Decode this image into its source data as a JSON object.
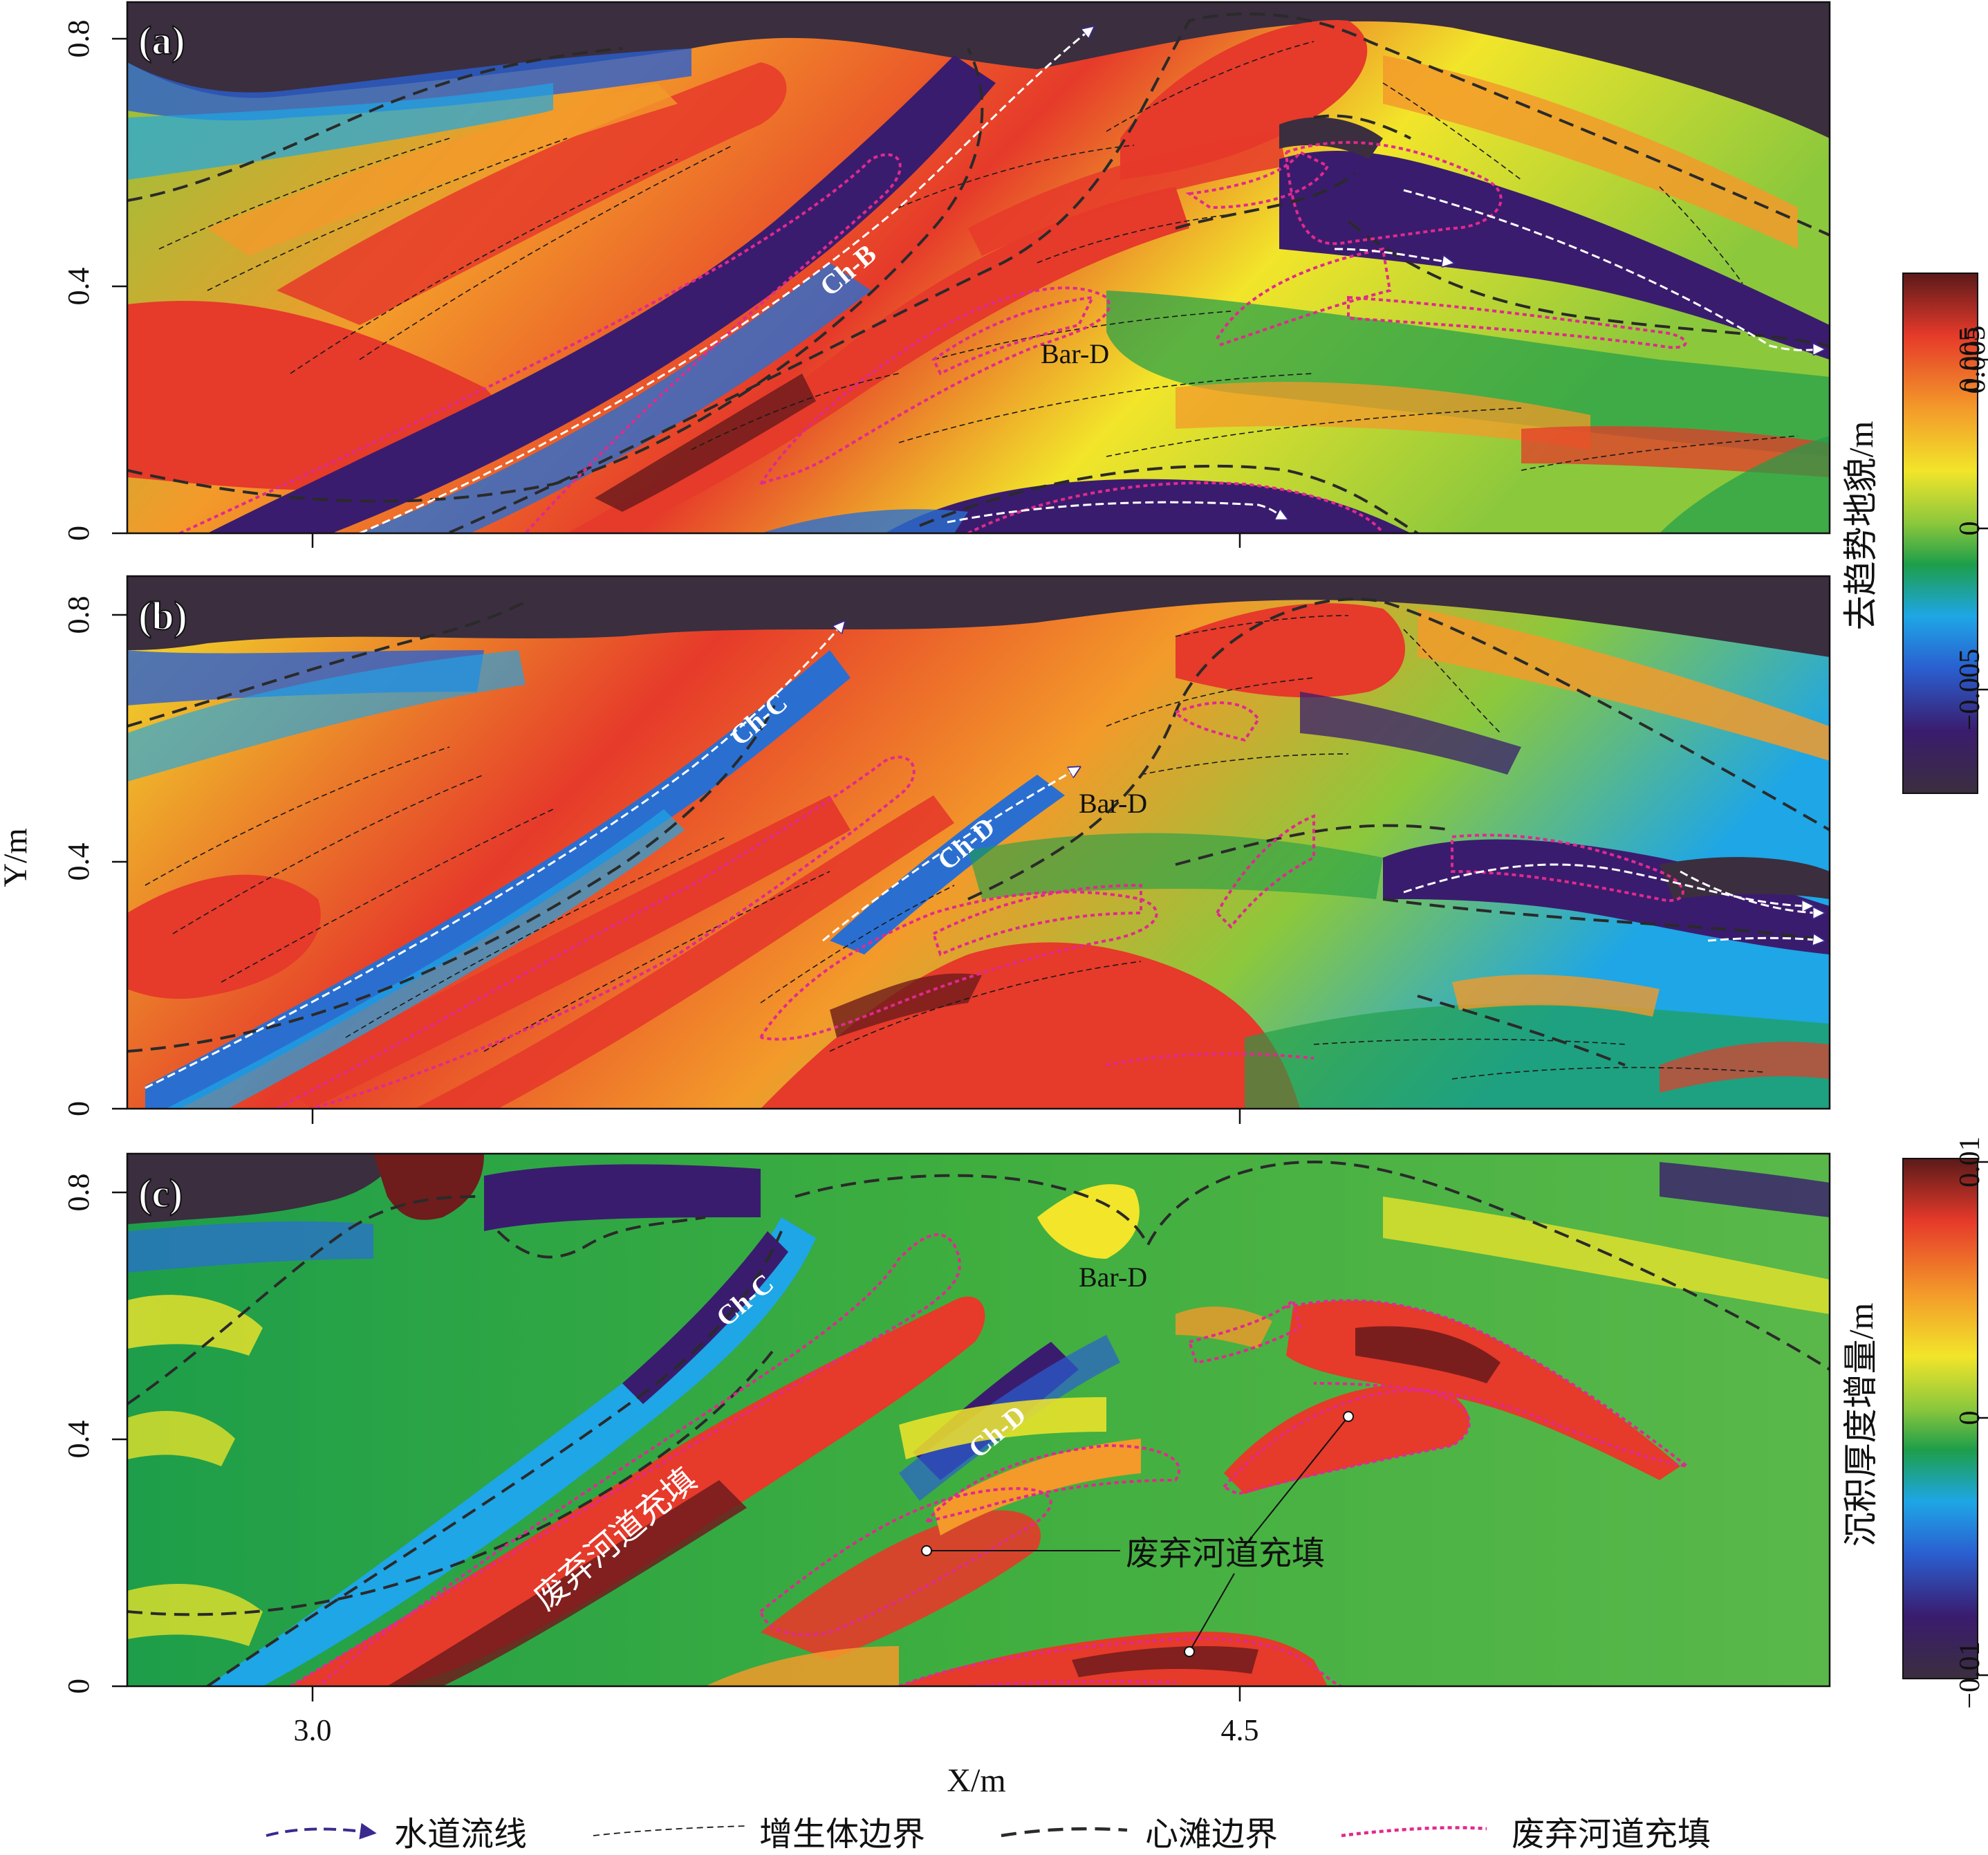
{
  "colors": {
    "dark": "#3b2e3f",
    "navy": "#3a1c6e",
    "blue": "#2a6fd0",
    "cyan": "#1ea6e6",
    "green": "#1e9e4a",
    "lime": "#8cc83c",
    "yellow": "#f2e52a",
    "orange": "#f39a2a",
    "red": "#e63a2a",
    "darkred": "#6e1c1c",
    "boundary_pink": "#e02a8e",
    "streamline_navy": "#3a2a8e"
  },
  "panels": [
    {
      "label": "(a)",
      "annotations": [
        "Ch-B",
        "Bar-D"
      ]
    },
    {
      "label": "(b)",
      "annotations": [
        "Ch-C",
        "Ch-D",
        "Bar-D"
      ]
    },
    {
      "label": "(c)",
      "annotations": [
        "Ch-C",
        "Ch-D",
        "Bar-D",
        "废弃河道充填",
        "废弃河道充填"
      ]
    }
  ],
  "axes": {
    "y_label": "Y/m",
    "x_label": "X/m",
    "y_ticks": [
      "0",
      "0.4",
      "0.8"
    ],
    "x_ticks": [
      "3.0",
      "4.5"
    ]
  },
  "colorbars": [
    {
      "title": "去趋势地貌/m",
      "ticks": [
        "0.005",
        "0",
        "−0.005"
      ]
    },
    {
      "title": "沉积厚度增量/m",
      "ticks": [
        "0.01",
        "0",
        "−0.01"
      ]
    }
  ],
  "legend": [
    {
      "label": "水道流线",
      "icon": "dashed-arrow"
    },
    {
      "label": "增生体边界",
      "icon": "thin-dashed-line"
    },
    {
      "label": "心滩边界",
      "icon": "thick-dashed-line"
    },
    {
      "label": "废弃河道充填",
      "icon": "pink-dotted-line"
    }
  ]
}
